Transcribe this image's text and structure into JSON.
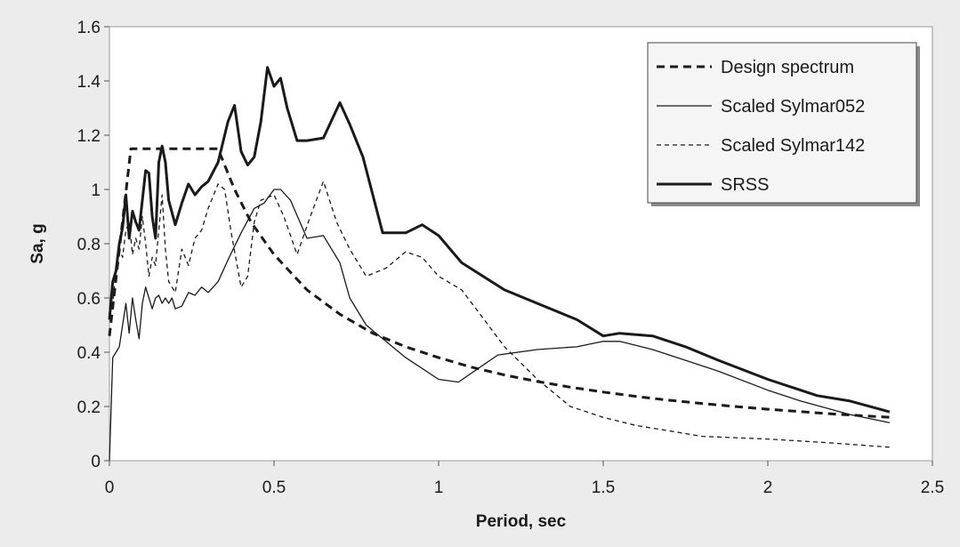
{
  "chart_data": {
    "type": "line",
    "title": "",
    "xlabel": "Period, sec",
    "ylabel": "Sa, g",
    "xlim": [
      0,
      2.5
    ],
    "ylim": [
      0,
      1.6
    ],
    "xticks": [
      0,
      0.5,
      1,
      1.5,
      2,
      2.5
    ],
    "xtick_labels": [
      "0",
      "0.5",
      "1",
      "1.5",
      "2",
      "2.5"
    ],
    "yticks": [
      0,
      0.2,
      0.4,
      0.6,
      0.8,
      1,
      1.2,
      1.4,
      1.6
    ],
    "ytick_labels": [
      "0",
      "0.2",
      "0.4",
      "0.6",
      "0.8",
      "1",
      "1.2",
      "1.4",
      "1.6"
    ],
    "grid": false,
    "legend_position": "top-right",
    "background": "#ffffff",
    "series": [
      {
        "name": "Design spectrum",
        "style": "dashed",
        "weight": "thick",
        "color": "#1a1a1a",
        "x": [
          0.0,
          0.065,
          0.33,
          0.38,
          0.43,
          0.5,
          0.6,
          0.7,
          0.8,
          0.9,
          1.0,
          1.1,
          1.2,
          1.3,
          1.4,
          1.5,
          1.6,
          1.7,
          1.8,
          1.9,
          2.0,
          2.1,
          2.2,
          2.3,
          2.37
        ],
        "y": [
          0.46,
          1.15,
          1.15,
          1.0,
          0.88,
          0.76,
          0.63,
          0.54,
          0.47,
          0.42,
          0.38,
          0.345,
          0.316,
          0.292,
          0.271,
          0.253,
          0.237,
          0.223,
          0.211,
          0.2,
          0.19,
          0.181,
          0.172,
          0.165,
          0.16
        ]
      },
      {
        "name": "Scaled Sylmar052",
        "style": "solid",
        "weight": "thin",
        "color": "#1a1a1a",
        "x": [
          0.0,
          0.01,
          0.02,
          0.03,
          0.04,
          0.05,
          0.06,
          0.07,
          0.08,
          0.09,
          0.1,
          0.11,
          0.12,
          0.13,
          0.14,
          0.15,
          0.16,
          0.17,
          0.18,
          0.19,
          0.2,
          0.22,
          0.24,
          0.26,
          0.28,
          0.3,
          0.33,
          0.36,
          0.4,
          0.44,
          0.47,
          0.5,
          0.52,
          0.55,
          0.6,
          0.65,
          0.7,
          0.73,
          0.78,
          0.82,
          0.9,
          1.0,
          1.06,
          1.12,
          1.18,
          1.3,
          1.42,
          1.5,
          1.55,
          1.65,
          1.75,
          1.85,
          2.0,
          2.1,
          2.25,
          2.37
        ],
        "y": [
          0.0,
          0.38,
          0.4,
          0.42,
          0.5,
          0.58,
          0.47,
          0.6,
          0.52,
          0.45,
          0.58,
          0.64,
          0.6,
          0.56,
          0.6,
          0.61,
          0.58,
          0.6,
          0.58,
          0.6,
          0.56,
          0.57,
          0.62,
          0.61,
          0.64,
          0.62,
          0.66,
          0.74,
          0.84,
          0.93,
          0.95,
          1.0,
          1.0,
          0.96,
          0.82,
          0.83,
          0.73,
          0.6,
          0.5,
          0.46,
          0.38,
          0.3,
          0.29,
          0.34,
          0.39,
          0.41,
          0.42,
          0.44,
          0.44,
          0.41,
          0.37,
          0.33,
          0.26,
          0.22,
          0.17,
          0.14
        ]
      },
      {
        "name": "Scaled Sylmar142",
        "style": "dashed",
        "weight": "thin",
        "color": "#1a1a1a",
        "x": [
          0.0,
          0.01,
          0.02,
          0.03,
          0.04,
          0.05,
          0.06,
          0.07,
          0.08,
          0.09,
          0.1,
          0.11,
          0.12,
          0.13,
          0.14,
          0.15,
          0.16,
          0.17,
          0.18,
          0.2,
          0.22,
          0.24,
          0.26,
          0.28,
          0.3,
          0.33,
          0.35,
          0.37,
          0.4,
          0.42,
          0.44,
          0.46,
          0.5,
          0.53,
          0.57,
          0.61,
          0.65,
          0.69,
          0.73,
          0.78,
          0.84,
          0.9,
          0.95,
          1.0,
          1.07,
          1.12,
          1.2,
          1.3,
          1.4,
          1.5,
          1.6,
          1.7,
          1.8,
          2.0,
          2.2,
          2.37
        ],
        "y": [
          0.54,
          0.58,
          0.7,
          0.78,
          0.75,
          0.85,
          0.88,
          0.76,
          0.82,
          0.78,
          0.9,
          0.8,
          0.68,
          0.75,
          0.72,
          0.85,
          0.98,
          0.78,
          0.66,
          0.62,
          0.78,
          0.72,
          0.82,
          0.85,
          0.93,
          1.02,
          1.0,
          0.84,
          0.64,
          0.68,
          0.88,
          0.96,
          0.98,
          0.9,
          0.76,
          0.9,
          1.03,
          0.88,
          0.78,
          0.68,
          0.71,
          0.77,
          0.75,
          0.68,
          0.63,
          0.55,
          0.42,
          0.3,
          0.2,
          0.16,
          0.13,
          0.11,
          0.09,
          0.08,
          0.065,
          0.05
        ]
      },
      {
        "name": "SRSS",
        "style": "solid",
        "weight": "thick",
        "color": "#1a1a1a",
        "x": [
          0.0,
          0.01,
          0.02,
          0.03,
          0.04,
          0.05,
          0.06,
          0.07,
          0.08,
          0.09,
          0.1,
          0.11,
          0.12,
          0.13,
          0.14,
          0.15,
          0.16,
          0.17,
          0.18,
          0.2,
          0.22,
          0.24,
          0.26,
          0.28,
          0.3,
          0.33,
          0.36,
          0.38,
          0.4,
          0.42,
          0.44,
          0.46,
          0.48,
          0.5,
          0.52,
          0.54,
          0.57,
          0.6,
          0.65,
          0.7,
          0.73,
          0.77,
          0.83,
          0.9,
          0.95,
          1.0,
          1.07,
          1.2,
          1.3,
          1.42,
          1.5,
          1.55,
          1.65,
          1.75,
          1.85,
          2.0,
          2.1,
          2.15,
          2.25,
          2.37
        ],
        "y": [
          0.52,
          0.66,
          0.7,
          0.8,
          0.86,
          0.98,
          0.82,
          0.92,
          0.88,
          0.85,
          0.96,
          1.07,
          1.06,
          0.9,
          0.82,
          1.1,
          1.16,
          1.1,
          0.96,
          0.87,
          0.95,
          1.02,
          0.98,
          1.01,
          1.03,
          1.1,
          1.25,
          1.31,
          1.14,
          1.09,
          1.12,
          1.25,
          1.45,
          1.38,
          1.41,
          1.3,
          1.18,
          1.18,
          1.19,
          1.32,
          1.24,
          1.12,
          0.84,
          0.84,
          0.87,
          0.83,
          0.73,
          0.63,
          0.58,
          0.52,
          0.46,
          0.47,
          0.46,
          0.42,
          0.37,
          0.3,
          0.26,
          0.24,
          0.22,
          0.18
        ]
      }
    ]
  }
}
